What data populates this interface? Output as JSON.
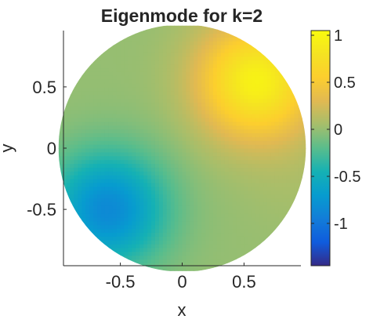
{
  "chart_data": {
    "type": "heatmap",
    "title": "Eigenmode for k=2",
    "xlabel": "x",
    "ylabel": "y",
    "xlim": [
      -0.96,
      0.96
    ],
    "ylim": [
      -0.96,
      0.96
    ],
    "x_ticks": [
      -0.5,
      0,
      0.5
    ],
    "x_tick_labels": [
      "-0.5",
      "0",
      "0.5"
    ],
    "y_ticks": [
      -0.5,
      0,
      0.5
    ],
    "y_tick_labels": [
      "-0.5",
      "0",
      "0.5"
    ],
    "domain": "unit disk",
    "grid": false,
    "colormap": "parula",
    "colorbar": {
      "position": "right",
      "range": [
        -1.45,
        1.05
      ],
      "ticks": [
        -1,
        -0.5,
        0,
        0.5,
        1
      ],
      "tick_labels": [
        "-1",
        "-0.5",
        "0",
        "0.5",
        "1"
      ]
    },
    "features": [
      {
        "kind": "maximum",
        "x": 0.6,
        "y": 0.55,
        "value": 0.95
      },
      {
        "kind": "minimum",
        "x": -0.6,
        "y": -0.5,
        "value": -0.85
      },
      {
        "kind": "minimum",
        "x": 0.95,
        "y": -0.25,
        "value": 0.05
      }
    ]
  }
}
